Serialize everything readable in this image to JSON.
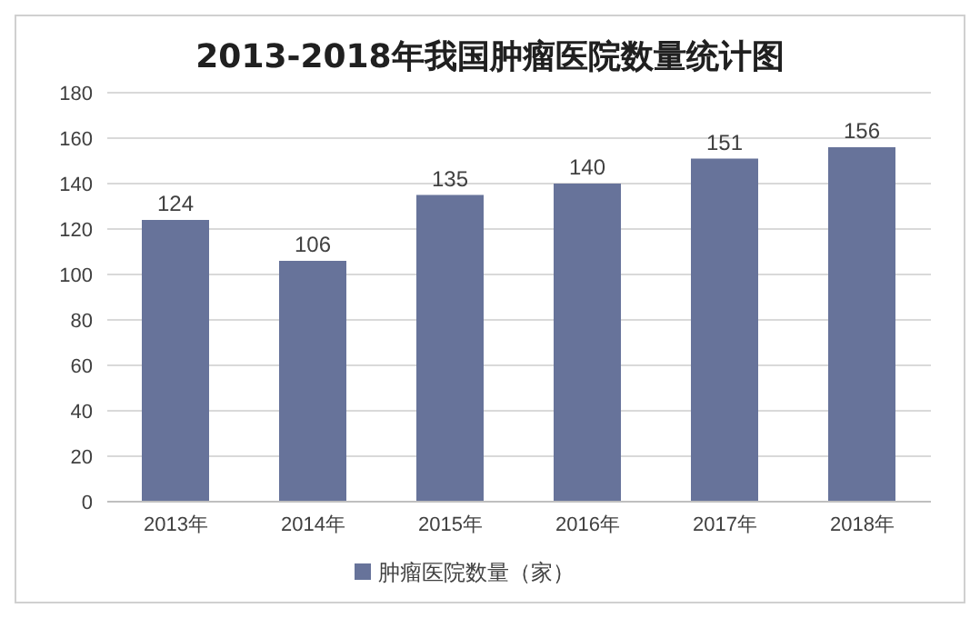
{
  "chart_data": {
    "type": "bar",
    "title": "2013-2018年我国肿瘤医院数量统计图",
    "categories": [
      "2013年",
      "2014年",
      "2015年",
      "2016年",
      "2017年",
      "2018年"
    ],
    "series": [
      {
        "name": "肿瘤医院数量（家）",
        "color": "#67739a",
        "values": [
          124,
          106,
          135,
          140,
          151,
          156
        ]
      }
    ],
    "ylim": [
      0,
      180
    ],
    "yticks": [
      0,
      20,
      40,
      60,
      80,
      100,
      120,
      140,
      160,
      180
    ],
    "grid": "y",
    "legend": "bottom",
    "data_labels": true
  }
}
